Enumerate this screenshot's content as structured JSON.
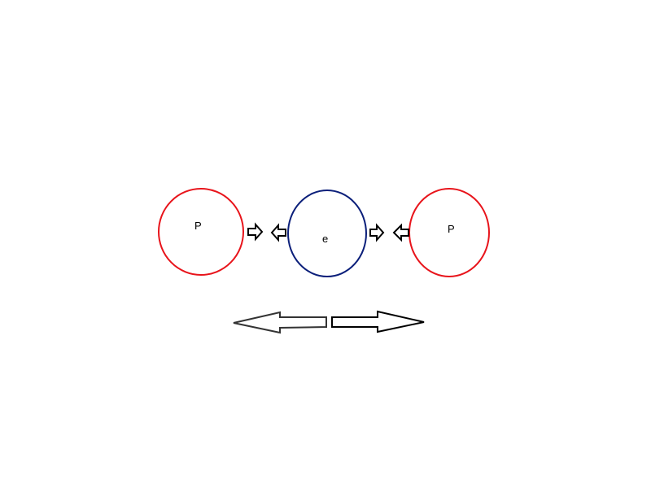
{
  "diagram": {
    "nodes": [
      {
        "id": "proton-left",
        "label": "P",
        "kind": "proton",
        "stroke": "#e8141b"
      },
      {
        "id": "electron-center",
        "label": "e",
        "kind": "electron",
        "stroke": "#0b1f7a"
      },
      {
        "id": "proton-right",
        "label": "P",
        "kind": "proton",
        "stroke": "#e8141b"
      }
    ],
    "small_arrows": [
      {
        "name": "arrow-right-icon",
        "direction": "right"
      },
      {
        "name": "arrow-left-icon",
        "direction": "left"
      },
      {
        "name": "arrow-right-icon",
        "direction": "right"
      },
      {
        "name": "arrow-left-icon",
        "direction": "left"
      }
    ],
    "large_arrows": [
      {
        "name": "large-arrow-left-icon",
        "direction": "left"
      },
      {
        "name": "large-arrow-right-icon",
        "direction": "right"
      }
    ],
    "colors": {
      "proton": "#e8141b",
      "electron": "#0b1f7a",
      "arrow_stroke": "#000000"
    }
  }
}
